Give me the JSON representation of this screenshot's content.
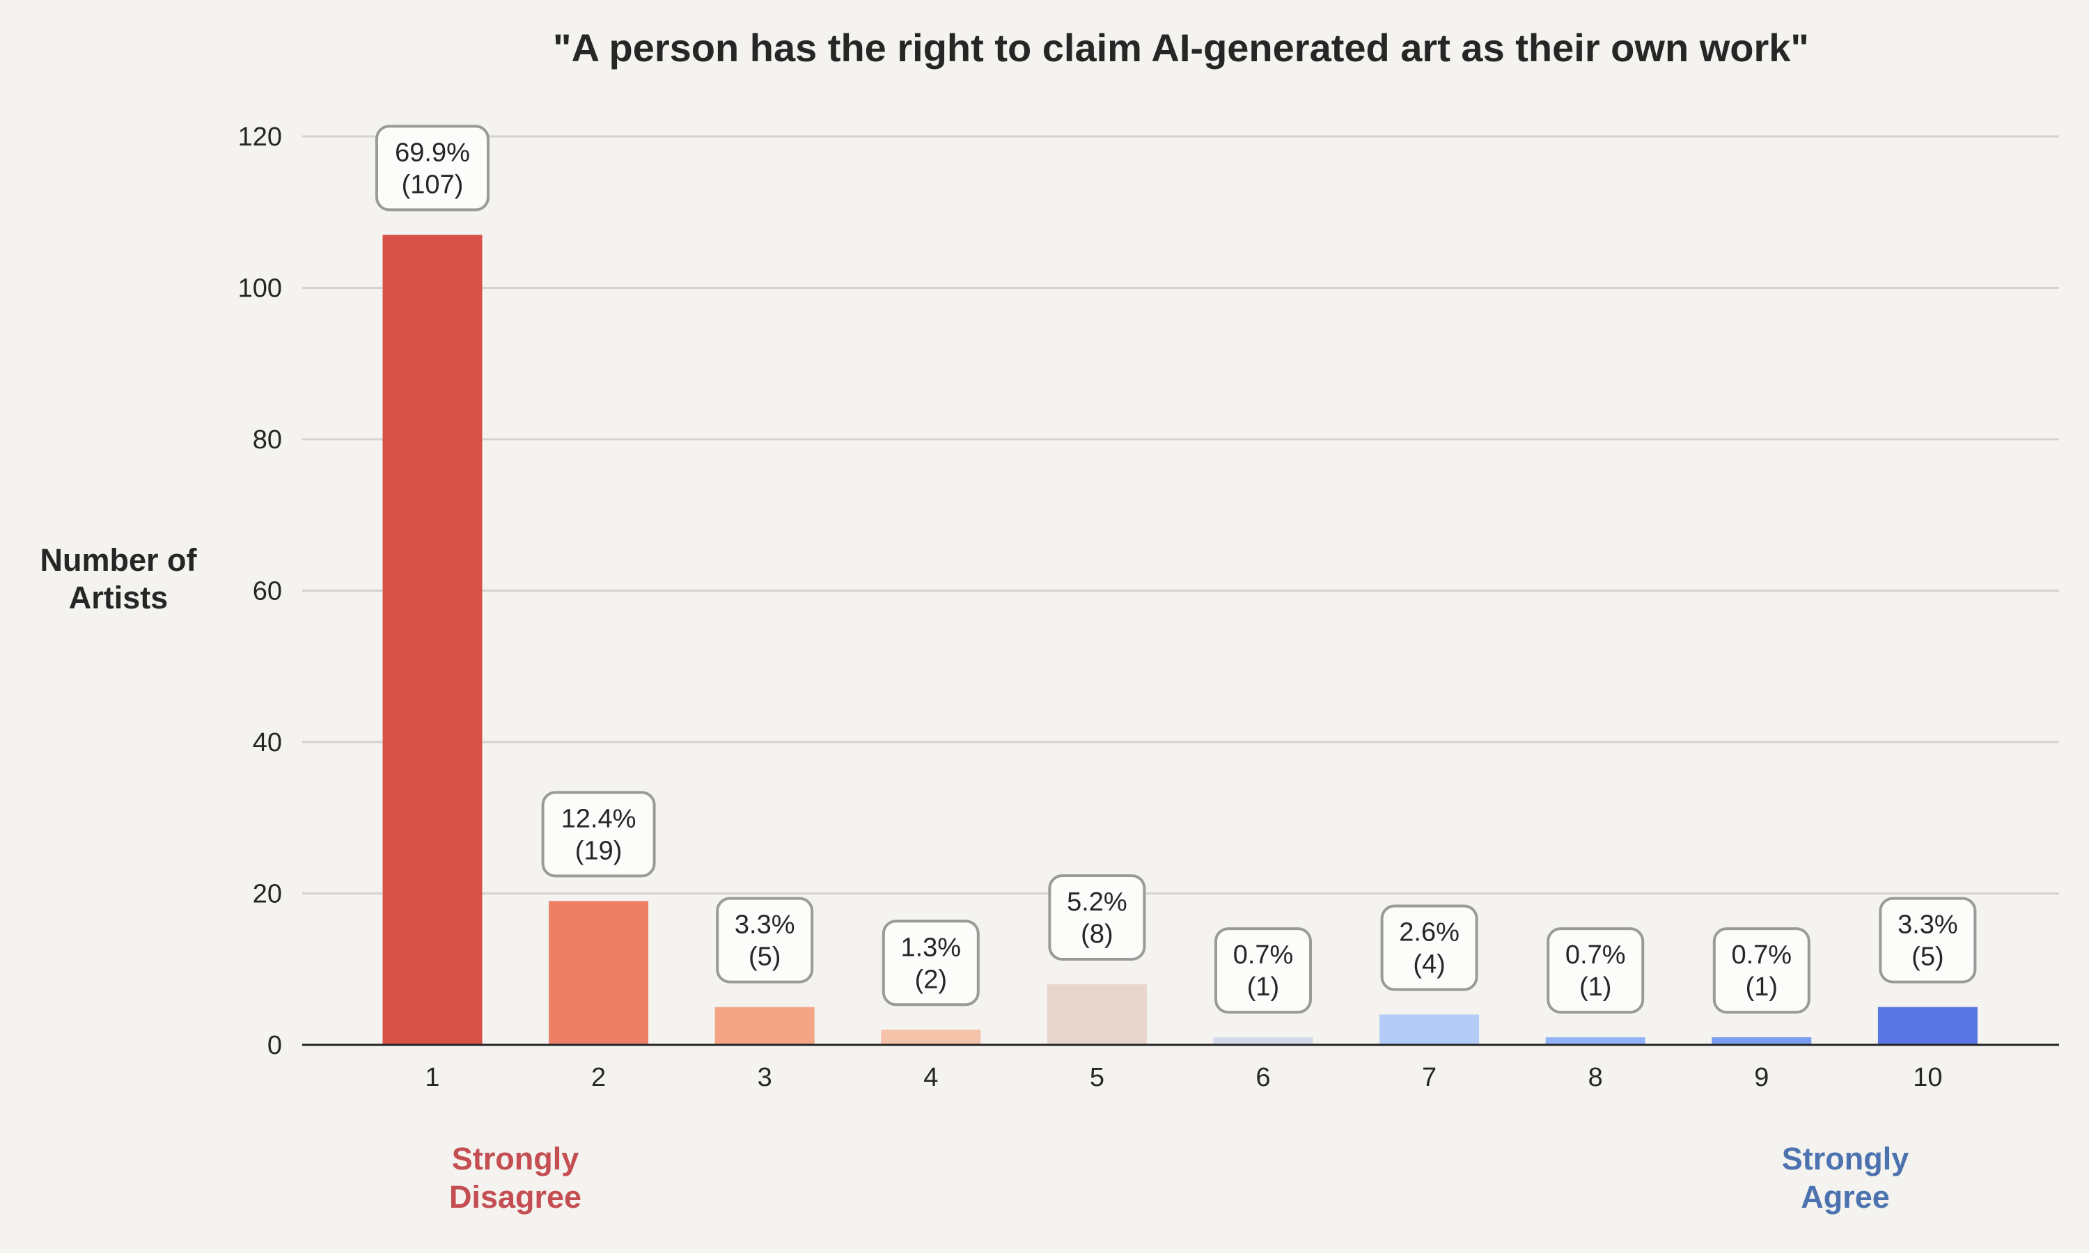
{
  "chart_data": {
    "type": "bar",
    "title": "\"A person has the right to claim AI-generated art as their own work\"",
    "xlabel": "",
    "ylabel": [
      "Number of",
      "Artists"
    ],
    "categories": [
      "1",
      "2",
      "3",
      "4",
      "5",
      "6",
      "7",
      "8",
      "9",
      "10"
    ],
    "values": [
      107,
      19,
      5,
      2,
      8,
      1,
      4,
      1,
      1,
      5
    ],
    "percent_labels": [
      "69.9%",
      "12.4%",
      "3.3%",
      "1.3%",
      "5.2%",
      "0.7%",
      "2.6%",
      "0.7%",
      "0.7%",
      "3.3%"
    ],
    "count_labels": [
      "(107)",
      "(19)",
      "(5)",
      "(2)",
      "(8)",
      "(1)",
      "(4)",
      "(1)",
      "(1)",
      "(5)"
    ],
    "bar_colors": [
      "#d85146",
      "#ec7f66",
      "#f4a586",
      "#f5c2aa",
      "#e8d5cc",
      "#d3dbe8",
      "#b3cdf8",
      "#93b4f9",
      "#7b9ef2",
      "#5977e3"
    ],
    "ylim": [
      0,
      120
    ],
    "yticks": [
      0,
      20,
      40,
      60,
      80,
      100,
      120
    ],
    "grid": true,
    "grid_axis": "y",
    "scale_annotations": {
      "left": {
        "lines": [
          "Strongly",
          "Disagree"
        ],
        "color": "#c44e52",
        "position": "below-category-1-2"
      },
      "right": {
        "lines": [
          "Strongly",
          "Agree"
        ],
        "color": "#4c72b0",
        "position": "below-category-9-10"
      }
    }
  }
}
